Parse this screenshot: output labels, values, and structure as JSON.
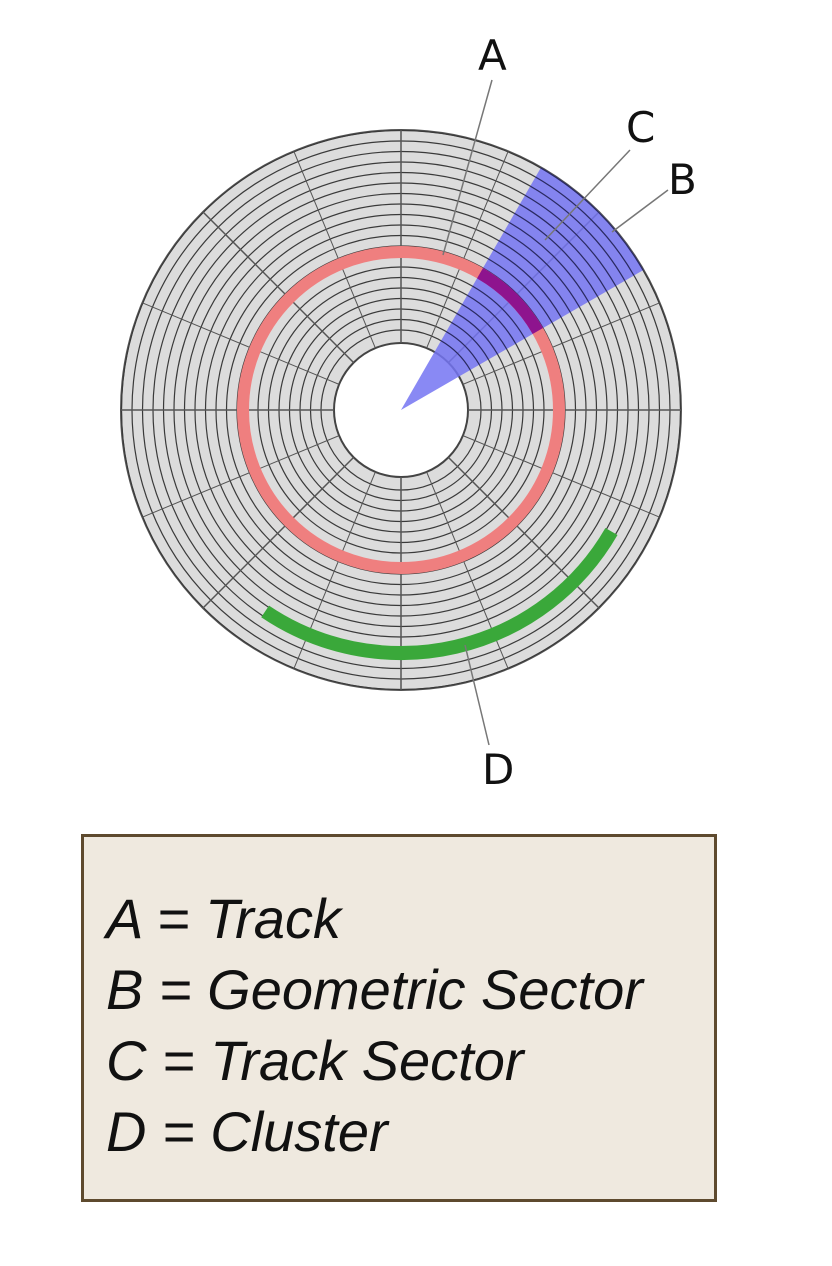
{
  "diagram": {
    "labels": {
      "a": "A",
      "b": "B",
      "c": "C",
      "d": "D"
    },
    "colors": {
      "platter": "#dcdcdc",
      "track_lines": "#3a3a3a",
      "track_highlight": "#ef7f7f",
      "geometric_sector": "#7474f2",
      "track_sector": "#8e148e",
      "cluster": "#3aa83a"
    }
  },
  "legend": {
    "items": [
      {
        "text": "A = Track"
      },
      {
        "text": "B = Geometric Sector"
      },
      {
        "text": "C = Track Sector"
      },
      {
        "text": "D = Cluster"
      }
    ]
  }
}
